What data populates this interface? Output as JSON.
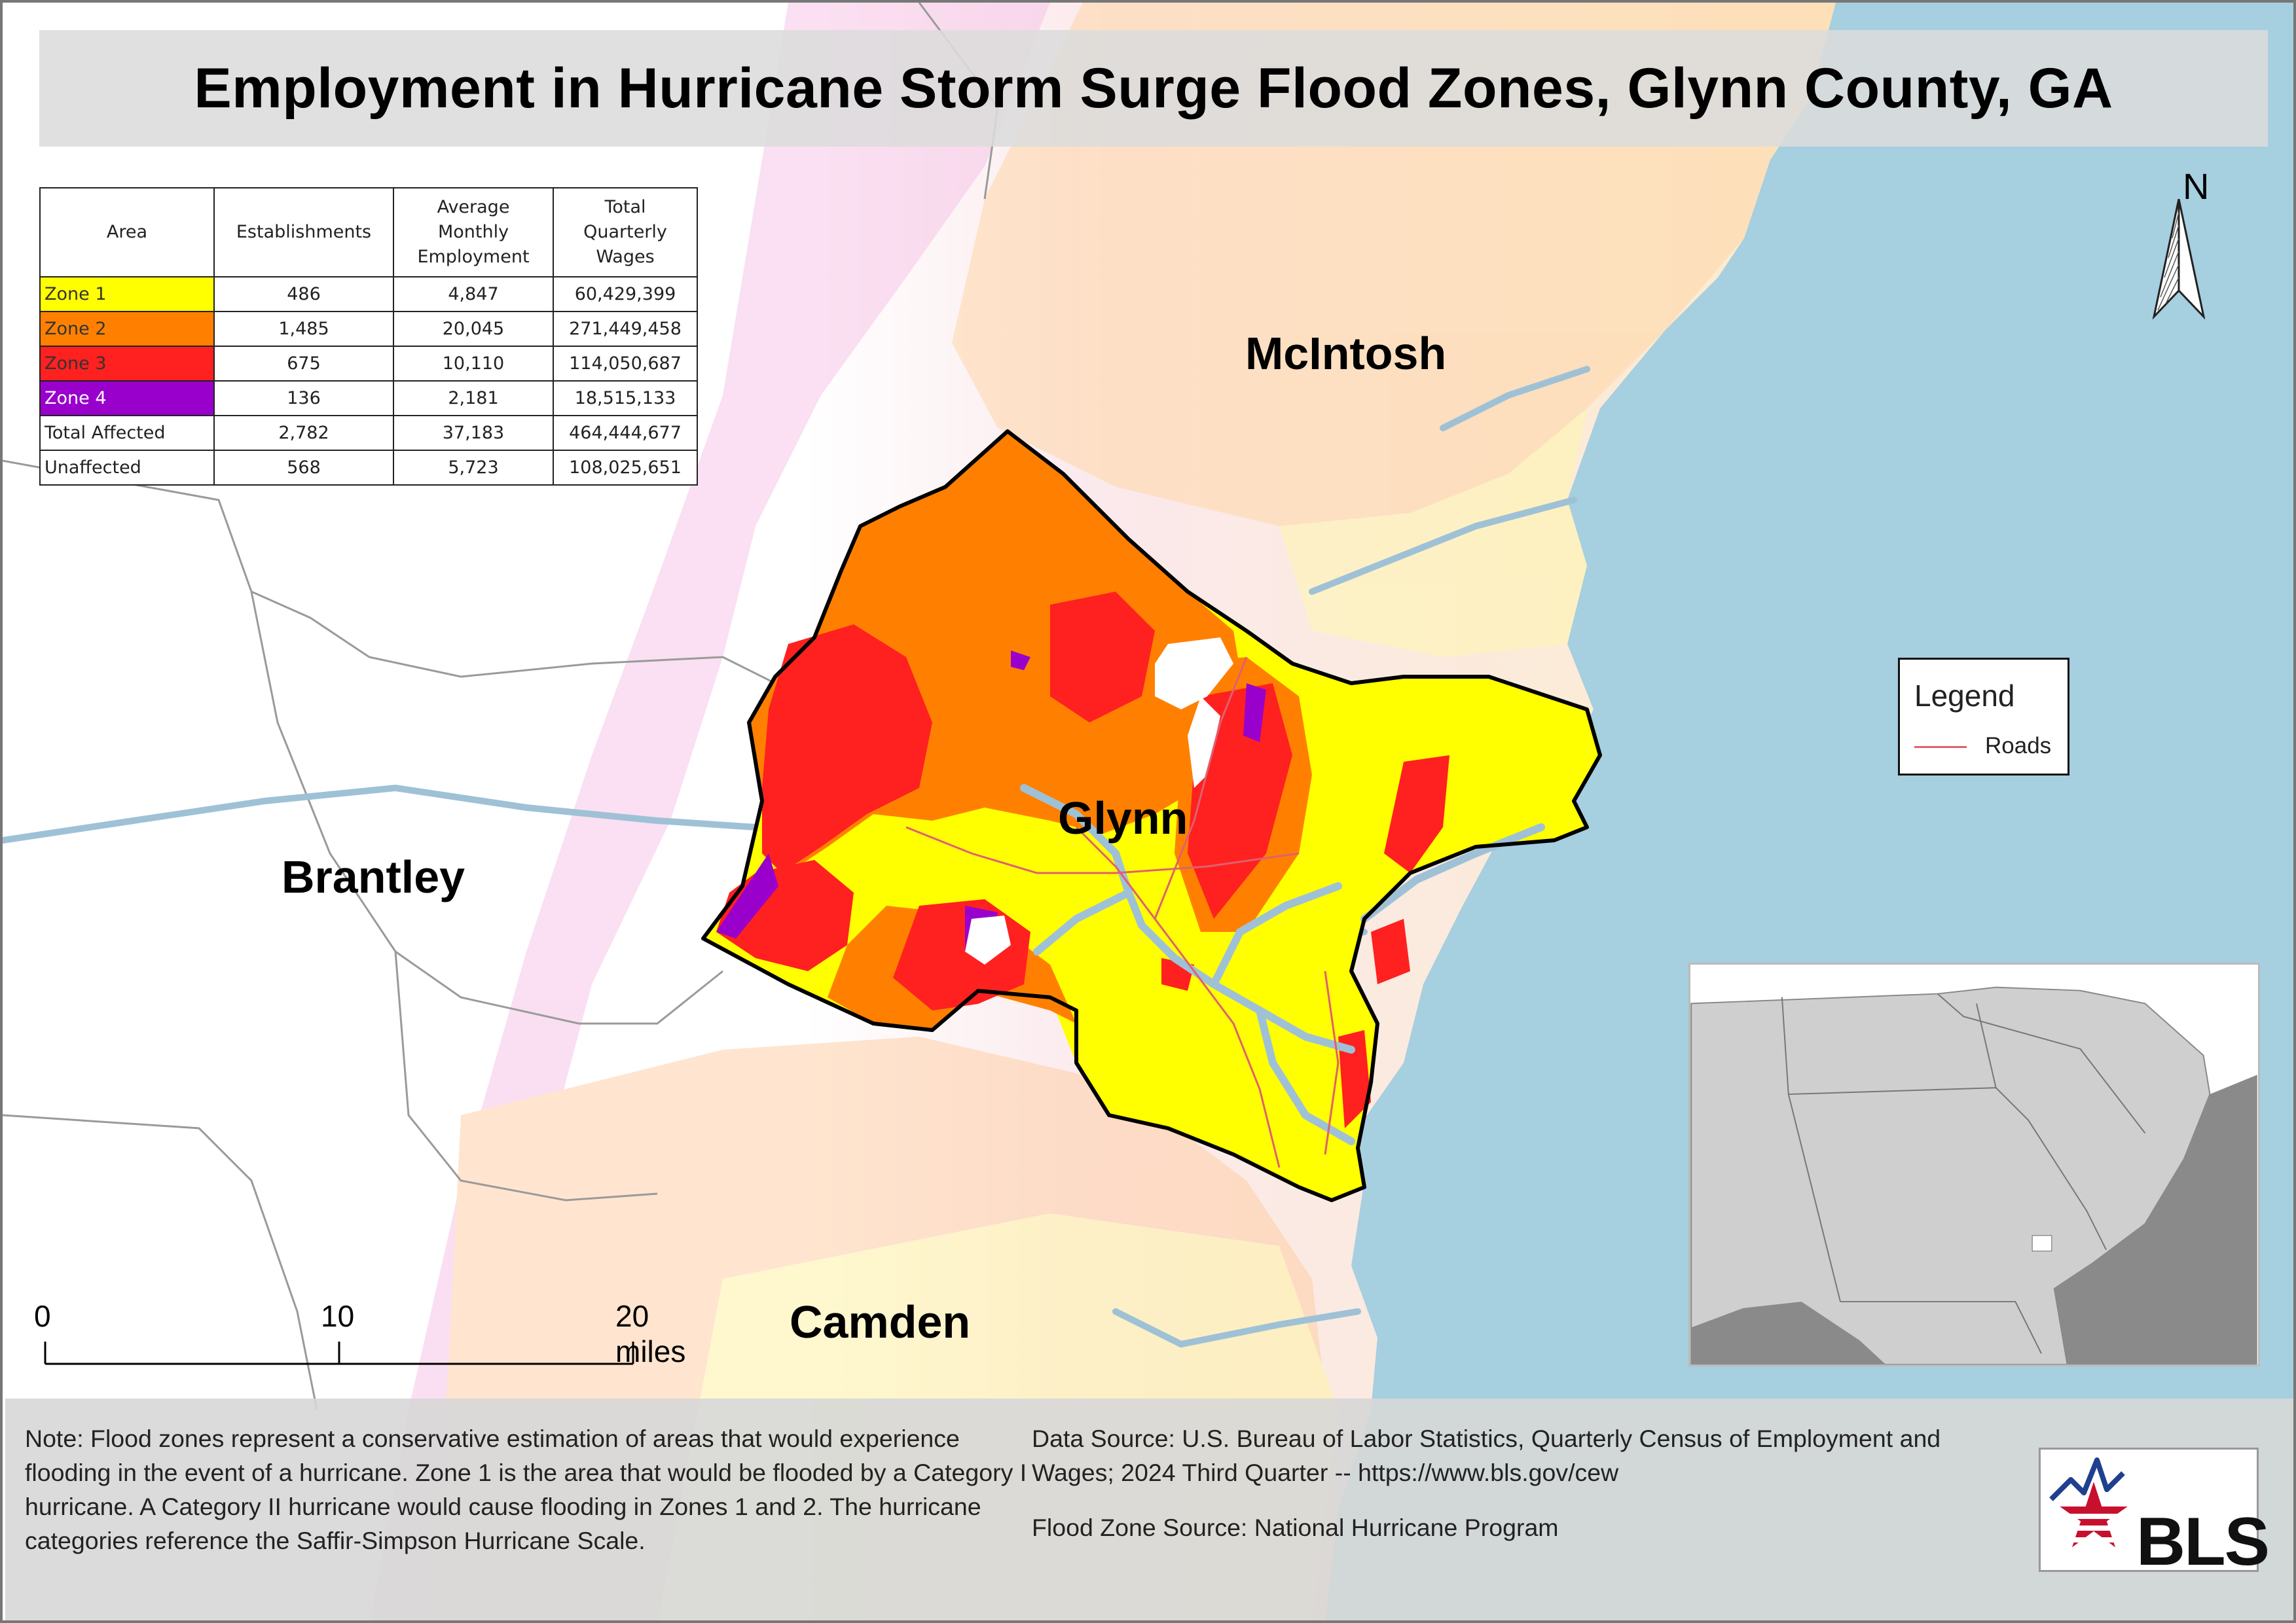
{
  "title": "Employment in Hurricane Storm Surge Flood Zones, Glynn County, GA",
  "colors": {
    "ocean": "#a6cfe0",
    "zone1": "#ffff00",
    "zone2": "#ff8000",
    "zone3": "#ff2020",
    "zone4": "#9900cc",
    "roads": "#e06070",
    "county_outline": "#000000"
  },
  "table": {
    "headers": {
      "area": "Area",
      "establishments": "Establishments",
      "employment_1": "Average",
      "employment_2": "Monthly",
      "employment_3": "Employment",
      "wages_1": "Total",
      "wages_2": "Quarterly",
      "wages_3": "Wages"
    },
    "rows": [
      {
        "area": "Zone 1",
        "establishments": "486",
        "employment": "4,847",
        "wages": "60,429,399",
        "swatch": "#ffff00",
        "text_color": "#333333"
      },
      {
        "area": "Zone 2",
        "establishments": "1,485",
        "employment": "20,045",
        "wages": "271,449,458",
        "swatch": "#ff8000",
        "text_color": "#333333"
      },
      {
        "area": "Zone 3",
        "establishments": "675",
        "employment": "10,110",
        "wages": "114,050,687",
        "swatch": "#ff2020",
        "text_color": "#333333"
      },
      {
        "area": "Zone 4",
        "establishments": "136",
        "employment": "2,181",
        "wages": "18,515,133",
        "swatch": "#9900cc",
        "text_color": "#ffffff"
      },
      {
        "area": "Total Affected",
        "establishments": "2,782",
        "employment": "37,183",
        "wages": "464,444,677",
        "swatch": "#ffffff",
        "text_color": "#222222"
      },
      {
        "area": "Unaffected",
        "establishments": "568",
        "employment": "5,723",
        "wages": "108,025,651",
        "swatch": "#ffffff",
        "text_color": "#222222"
      }
    ]
  },
  "counties": {
    "mcintosh": "McIntosh",
    "glynn": "Glynn",
    "brantley": "Brantley",
    "camden": "Camden"
  },
  "north_label": "N",
  "legend": {
    "title": "Legend",
    "item": "Roads"
  },
  "scale": {
    "label_0": "0",
    "label_10": "10",
    "label_20": "20 miles"
  },
  "note": "Note: Flood zones represent a conservative estimation of areas that would experience flooding in the event of a hurricane. Zone 1 is the area that would be flooded by a Category I hurricane. A Category II hurricane would cause flooding in Zones 1 and 2. The hurricane categories reference the Saffir-Simpson Hurricane Scale.",
  "source": {
    "data": "Data Source: U.S. Bureau of Labor Statistics, Quarterly Census of Employment and Wages; 2024 Third Quarter -- https://www.bls.gov/cew",
    "flood": "Flood Zone Source: National Hurricane Program"
  },
  "logo_text": "BLS"
}
